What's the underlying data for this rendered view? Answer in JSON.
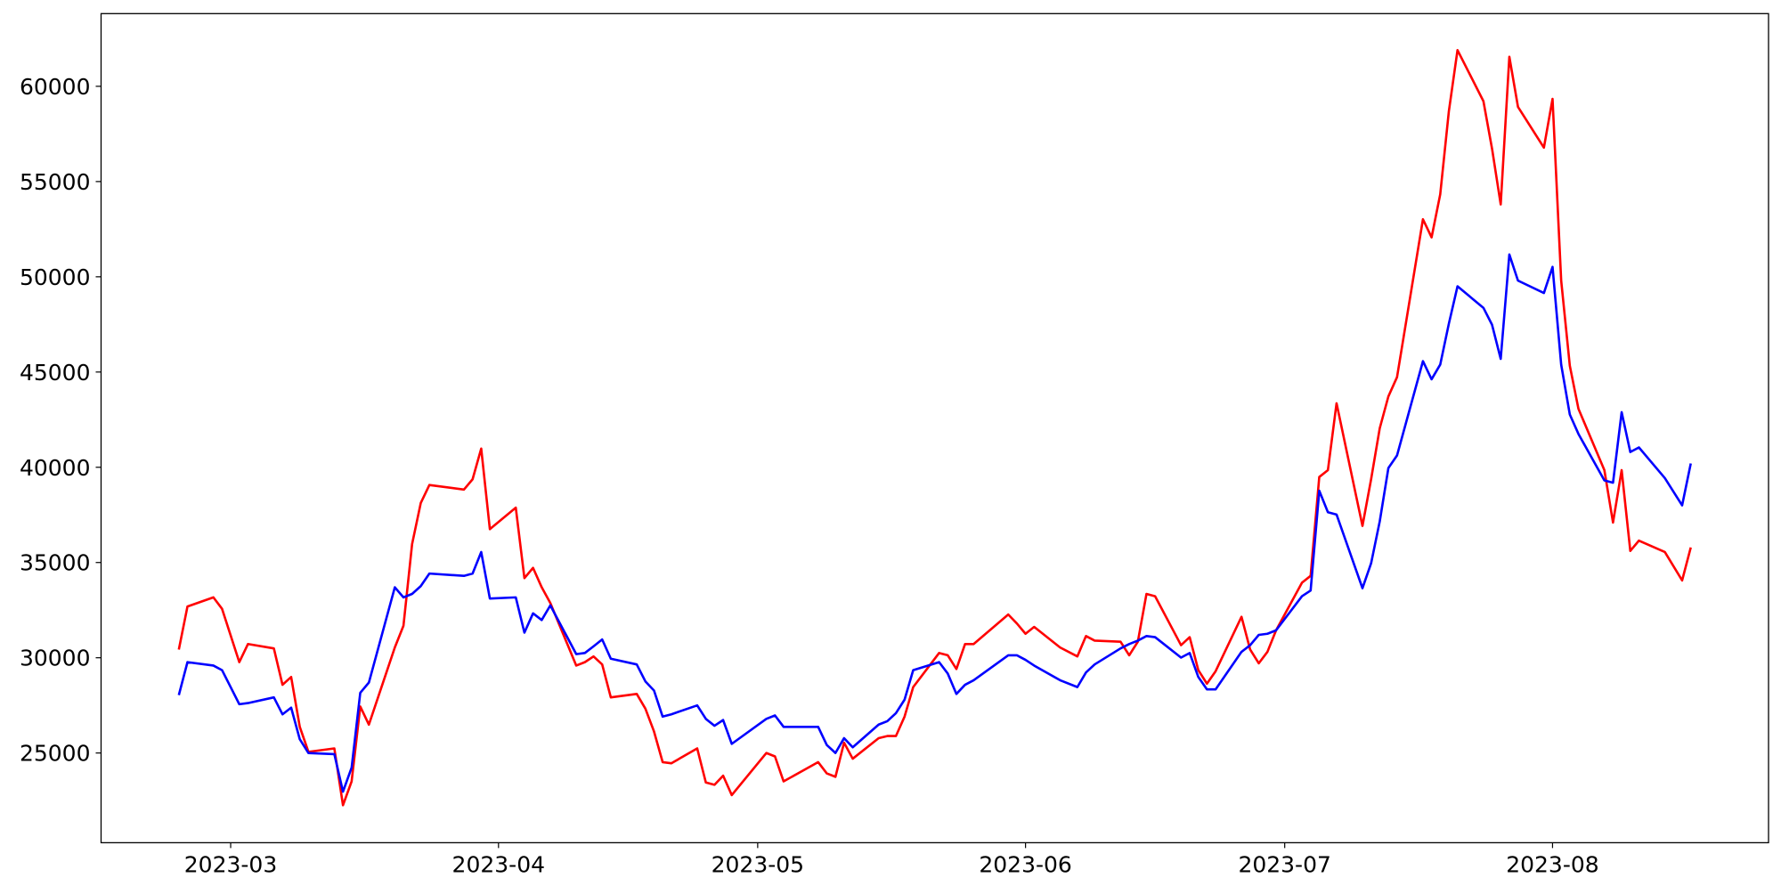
{
  "chart_data": {
    "type": "line",
    "x": [
      "2023-02-23",
      "2023-02-24",
      "2023-02-27",
      "2023-02-28",
      "2023-03-02",
      "2023-03-03",
      "2023-03-06",
      "2023-03-07",
      "2023-03-08",
      "2023-03-09",
      "2023-03-10",
      "2023-03-13",
      "2023-03-14",
      "2023-03-15",
      "2023-03-16",
      "2023-03-17",
      "2023-03-20",
      "2023-03-21",
      "2023-03-22",
      "2023-03-23",
      "2023-03-24",
      "2023-03-28",
      "2023-03-29",
      "2023-03-30",
      "2023-03-31",
      "2023-04-03",
      "2023-04-04",
      "2023-04-05",
      "2023-04-06",
      "2023-04-07",
      "2023-04-10",
      "2023-04-11",
      "2023-04-12",
      "2023-04-13",
      "2023-04-14",
      "2023-04-17",
      "2023-04-18",
      "2023-04-19",
      "2023-04-20",
      "2023-04-21",
      "2023-04-24",
      "2023-04-25",
      "2023-04-26",
      "2023-04-27",
      "2023-04-28",
      "2023-05-02",
      "2023-05-03",
      "2023-05-04",
      "2023-05-08",
      "2023-05-09",
      "2023-05-10",
      "2023-05-11",
      "2023-05-12",
      "2023-05-15",
      "2023-05-16",
      "2023-05-17",
      "2023-05-18",
      "2023-05-19",
      "2023-05-22",
      "2023-05-23",
      "2023-05-24",
      "2023-05-25",
      "2023-05-26",
      "2023-05-30",
      "2023-05-31",
      "2023-06-01",
      "2023-06-02",
      "2023-06-05",
      "2023-06-07",
      "2023-06-08",
      "2023-06-09",
      "2023-06-12",
      "2023-06-13",
      "2023-06-14",
      "2023-06-15",
      "2023-06-16",
      "2023-06-19",
      "2023-06-20",
      "2023-06-21",
      "2023-06-22",
      "2023-06-23",
      "2023-06-26",
      "2023-06-27",
      "2023-06-28",
      "2023-06-29",
      "2023-06-30",
      "2023-07-03",
      "2023-07-04",
      "2023-07-05",
      "2023-07-06",
      "2023-07-07",
      "2023-07-10",
      "2023-07-11",
      "2023-07-12",
      "2023-07-13",
      "2023-07-14",
      "2023-07-17",
      "2023-07-18",
      "2023-07-19",
      "2023-07-20",
      "2023-07-21",
      "2023-07-24",
      "2023-07-25",
      "2023-07-26",
      "2023-07-27",
      "2023-07-28",
      "2023-07-31",
      "2023-08-01",
      "2023-08-02",
      "2023-08-03",
      "2023-08-04",
      "2023-08-07",
      "2023-08-08",
      "2023-08-09",
      "2023-08-10",
      "2023-08-11",
      "2023-08-14",
      "2023-08-16",
      "2023-08-17"
    ],
    "series": [
      {
        "color": "#ff0000",
        "values": [
          30430,
          32690,
          33170,
          32570,
          29770,
          30720,
          30490,
          28580,
          28990,
          26370,
          25060,
          25240,
          22260,
          23510,
          27440,
          26490,
          30540,
          31680,
          35970,
          38120,
          39070,
          38830,
          39370,
          40980,
          36750,
          37880,
          34180,
          34720,
          33700,
          32870,
          29590,
          29770,
          30070,
          29650,
          27920,
          28100,
          27330,
          26130,
          24520,
          24460,
          25240,
          23450,
          23330,
          23810,
          22790,
          25000,
          24820,
          23510,
          24520,
          23930,
          23750,
          25540,
          24700,
          25780,
          25890,
          25890,
          26910,
          28460,
          30250,
          30130,
          29410,
          30720,
          30720,
          32270,
          31800,
          31260,
          31620,
          30540,
          30070,
          31140,
          30900,
          30840,
          30130,
          30840,
          33350,
          33230,
          30660,
          31080,
          29350,
          28640,
          29290,
          32150,
          30430,
          29710,
          30310,
          31440,
          33940,
          34300,
          39490,
          39850,
          43360,
          36920,
          39370,
          42050,
          43720,
          44730,
          53020,
          52070,
          54330,
          58690,
          61900,
          59220,
          56720,
          53800,
          61550,
          58920,
          56780,
          59340,
          49800,
          45330,
          43070,
          39850,
          37100,
          39850,
          35610,
          36150,
          35550,
          34060,
          35790
        ]
      },
      {
        "color": "#0000ff",
        "values": [
          28040,
          29770,
          29590,
          29350,
          27560,
          27620,
          27920,
          27030,
          27380,
          25720,
          25000,
          24940,
          22970,
          24230,
          28160,
          28700,
          33700,
          33170,
          33350,
          33760,
          34420,
          34300,
          34420,
          35550,
          33110,
          33170,
          31320,
          32330,
          31980,
          32750,
          30190,
          30250,
          30600,
          30960,
          29950,
          29650,
          28760,
          28280,
          26910,
          27030,
          27500,
          26790,
          26430,
          26730,
          25480,
          26790,
          26970,
          26370,
          26370,
          25420,
          25000,
          25780,
          25300,
          26490,
          26670,
          27090,
          27800,
          29350,
          29770,
          29170,
          28100,
          28580,
          28820,
          30130,
          30130,
          29890,
          29590,
          28820,
          28460,
          29230,
          29650,
          30490,
          30720,
          30900,
          31140,
          31080,
          30010,
          30250,
          28990,
          28340,
          28340,
          30310,
          30660,
          31200,
          31260,
          31440,
          33230,
          33530,
          38770,
          37640,
          37520,
          33650,
          34960,
          37160,
          39960,
          40620,
          45570,
          44620,
          45390,
          47540,
          49500,
          48370,
          47480,
          45690,
          51170,
          49800,
          49150,
          50520,
          45390,
          42770,
          41750,
          39310,
          39190,
          42890,
          40800,
          41040,
          39430,
          38000,
          40200
        ]
      }
    ],
    "xlim": [
      "2023-02-14",
      "2023-08-26"
    ],
    "xticks": [
      {
        "value": "2023-03-01",
        "label": "2023-03"
      },
      {
        "value": "2023-04-01",
        "label": "2023-04"
      },
      {
        "value": "2023-05-01",
        "label": "2023-05"
      },
      {
        "value": "2023-06-01",
        "label": "2023-06"
      },
      {
        "value": "2023-07-01",
        "label": "2023-07"
      },
      {
        "value": "2023-08-01",
        "label": "2023-08"
      }
    ],
    "ylim": [
      20290,
      63816
    ],
    "yticks": [
      25000,
      30000,
      35000,
      40000,
      45000,
      50000,
      55000,
      60000
    ],
    "grid": false
  }
}
